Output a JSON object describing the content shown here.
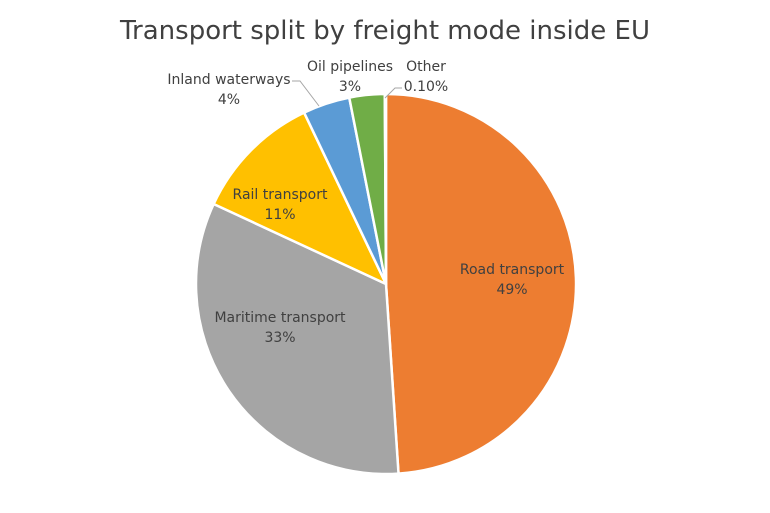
{
  "chart_data": {
    "type": "pie",
    "title": "Transport split by freight mode inside EU",
    "legend": "none",
    "start": "top",
    "direction": "clockwise",
    "slices": [
      {
        "name": "Road transport",
        "value": 49,
        "value_label": "49%",
        "color": "#ED7D31",
        "label_color": "#404040"
      },
      {
        "name": "Maritime transport",
        "value": 33,
        "value_label": "33%",
        "color": "#A5A5A5",
        "label_color": "#404040"
      },
      {
        "name": "Rail transport",
        "value": 11,
        "value_label": "11%",
        "color": "#FFC000",
        "label_color": "#404040"
      },
      {
        "name": "Inland waterways",
        "value": 4,
        "value_label": "4%",
        "color": "#5B9BD5",
        "label_color": "#404040"
      },
      {
        "name": "Oil pipelines",
        "value": 3,
        "value_label": "3%",
        "color": "#70AD47",
        "label_color": "#404040"
      },
      {
        "name": "Other",
        "value": 0.1,
        "value_label": "0.10%",
        "color": "#4472C4",
        "label_color": "#404040"
      }
    ]
  }
}
